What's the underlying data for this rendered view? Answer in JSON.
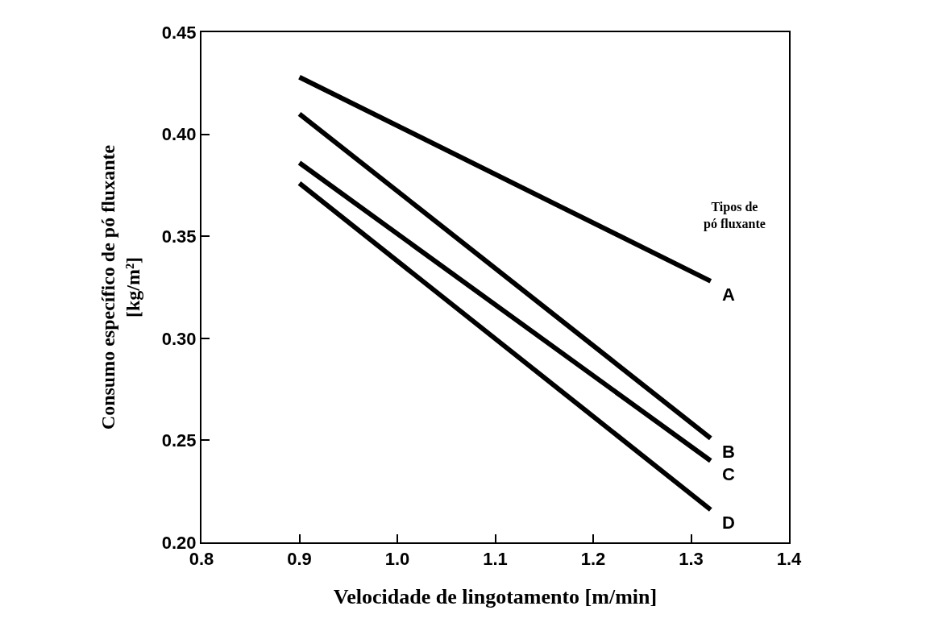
{
  "chart_data": {
    "type": "line",
    "xlabel": "Velocidade de lingotamento [m/min]",
    "ylabel": "Consumo específico de pó fluxante\n[kg/m²]",
    "legend_title": "Tipos de\npó fluxante",
    "x": [
      0.9,
      1.32
    ],
    "series": [
      {
        "name": "A",
        "color": "#000000",
        "values": [
          0.428,
          0.328
        ]
      },
      {
        "name": "B",
        "color": "#000000",
        "values": [
          0.41,
          0.251
        ]
      },
      {
        "name": "C",
        "color": "#000000",
        "values": [
          0.386,
          0.24
        ]
      },
      {
        "name": "D",
        "color": "#000000",
        "values": [
          0.376,
          0.216
        ]
      }
    ],
    "xlim": [
      0.8,
      1.4
    ],
    "xticks": [
      0.8,
      0.9,
      {
        "value": 1,
        "label": "1.0"
      },
      1.1,
      1.2,
      1.3,
      1.4
    ],
    "ylim": [
      0.2,
      0.45
    ],
    "yticks": [
      {
        "value": 0.2,
        "label": "0.20"
      },
      0.25,
      {
        "value": 0.3,
        "label": "0.30"
      },
      0.35,
      {
        "value": 0.4,
        "label": "0.40"
      },
      0.45
    ],
    "legend": false,
    "marker": "none",
    "line_style": "solid"
  }
}
